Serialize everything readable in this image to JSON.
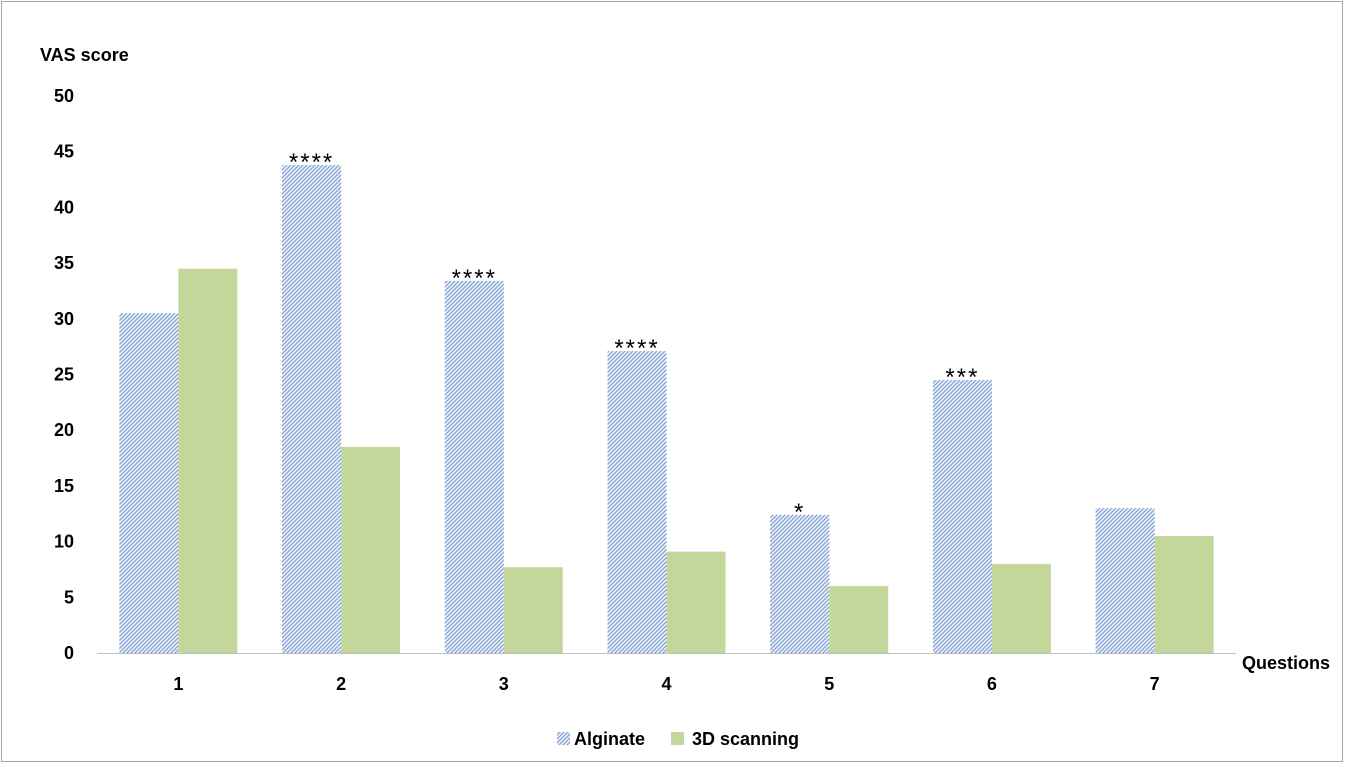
{
  "chart_data": {
    "type": "bar",
    "title": "",
    "ylabel": "VAS score",
    "xlabel": "Questions",
    "ylim": [
      0,
      50
    ],
    "yticks": [
      0,
      5,
      10,
      15,
      20,
      25,
      30,
      35,
      40,
      45,
      50
    ],
    "categories": [
      "1",
      "2",
      "3",
      "4",
      "5",
      "6",
      "7"
    ],
    "series": [
      {
        "name": "Alginate",
        "values": [
          30.5,
          43.8,
          33.4,
          27.1,
          12.4,
          24.5,
          13.0
        ],
        "color": "#8eaadb",
        "pattern": "diagonal-hatch"
      },
      {
        "name": "3D scanning",
        "values": [
          34.5,
          18.5,
          7.7,
          9.1,
          6.0,
          8.0,
          10.5
        ],
        "color": "#c4d79b",
        "pattern": "solid"
      }
    ],
    "annotations": [
      "",
      "****",
      "****",
      "****",
      "*",
      "***",
      ""
    ],
    "grid": false,
    "legend_position": "bottom"
  }
}
